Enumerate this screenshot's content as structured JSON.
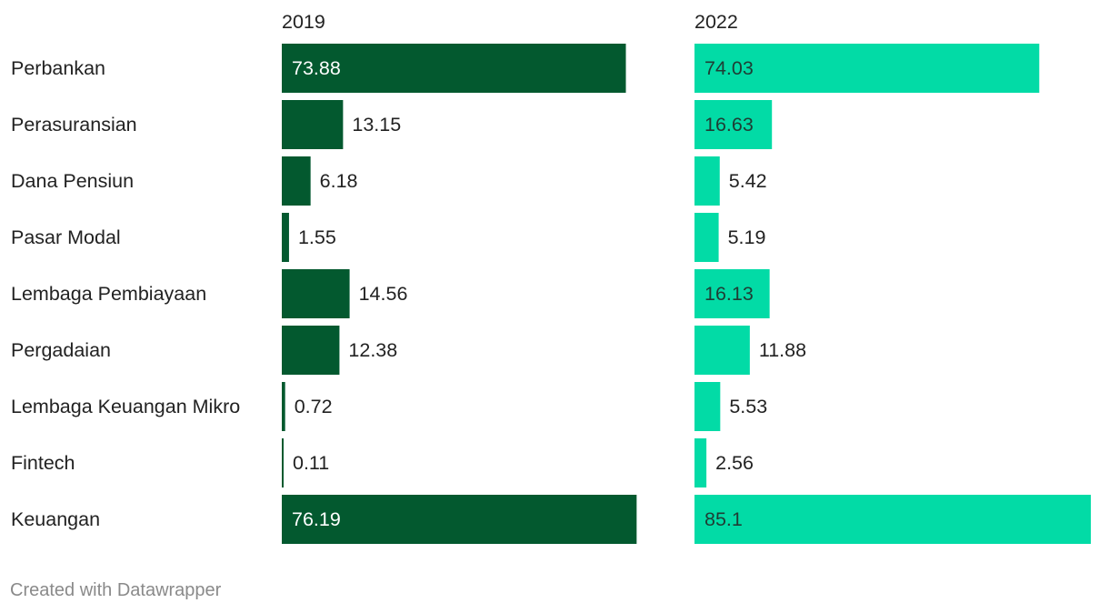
{
  "chart_data": {
    "type": "bar",
    "orientation": "horizontal",
    "categories": [
      "Perbankan",
      "Perasuransian",
      "Dana Pensiun",
      "Pasar Modal",
      "Lembaga Pembiayaan",
      "Pergadaian",
      "Lembaga Keuangan Mikro",
      "Fintech",
      "Keuangan"
    ],
    "series": [
      {
        "name": "2019",
        "color": "#03592f",
        "values": [
          73.88,
          13.15,
          6.18,
          1.55,
          14.56,
          12.38,
          0.72,
          0.11,
          76.19
        ]
      },
      {
        "name": "2022",
        "color": "#02dba6",
        "values": [
          74.03,
          16.63,
          5.42,
          5.19,
          16.13,
          11.88,
          5.53,
          2.56,
          85.1
        ]
      }
    ],
    "xlim": [
      0,
      85.1
    ],
    "grid": false,
    "legend": "none"
  },
  "footer": {
    "credit": "Created with Datawrapper"
  }
}
